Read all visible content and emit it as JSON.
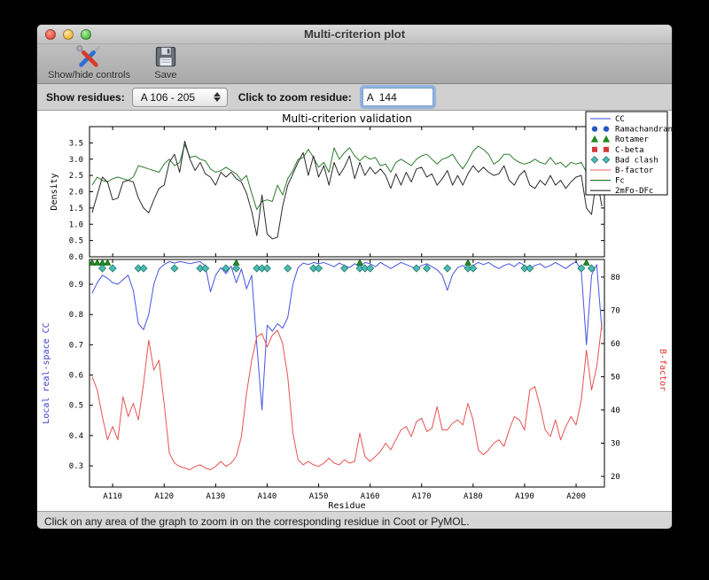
{
  "window": {
    "title": "Multi-criterion plot",
    "toolbar": {
      "show_hide_label": "Show/hide controls",
      "save_label": "Save"
    },
    "controls": {
      "show_residues_label": "Show residues:",
      "residue_range_value": "A 106 - 205",
      "zoom_residue_label": "Click to zoom residue:",
      "zoom_residue_value": "A  144"
    },
    "status_text": "Click on any area of the graph to zoom in on the corresponding residue in Coot or PyMOL."
  },
  "chart_data": {
    "type": "line",
    "title": "Multi-criterion validation",
    "xlabel": "Residue",
    "x_range": [
      105.5,
      205.5
    ],
    "residue_start": 106,
    "x_tick_labels": [
      "A110",
      "A120",
      "A130",
      "A140",
      "A150",
      "A160",
      "A170",
      "A180",
      "A190",
      "A200"
    ],
    "x_tick_residues": [
      110,
      120,
      130,
      140,
      150,
      160,
      170,
      180,
      190,
      200
    ],
    "legend": {
      "position": "upper right",
      "entries": [
        {
          "label": "CC",
          "type": "line",
          "color": "#5b6ee1"
        },
        {
          "label": "Ramachandran",
          "type": "circle",
          "color": "#2757c4"
        },
        {
          "label": "Rotamer",
          "type": "triangle",
          "color": "#1e8c1e"
        },
        {
          "label": "C-beta",
          "type": "square",
          "color": "#d33a3a"
        },
        {
          "label": "Bad clash",
          "type": "diamond",
          "color": "#4cbcb2"
        },
        {
          "label": "B-factor",
          "type": "line",
          "color": "#f08080"
        },
        {
          "label": "Fc",
          "type": "line",
          "color": "#2e7d2e"
        },
        {
          "label": "2mFo-DFc",
          "type": "line",
          "color": "#2b2b2b"
        }
      ]
    },
    "subplots": [
      {
        "name": "density",
        "ylabel": "Density",
        "ylabel_color": "#000000",
        "ylim": [
          0,
          4.0
        ],
        "yticks": [
          0.0,
          0.5,
          1.0,
          1.5,
          2.0,
          2.5,
          3.0,
          3.5
        ],
        "series": [
          {
            "name": "Fc",
            "color": "#2e7d2e",
            "values": [
              2.2,
              2.45,
              2.35,
              2.3,
              2.4,
              2.45,
              2.4,
              2.35,
              2.45,
              2.8,
              2.75,
              2.7,
              2.65,
              2.6,
              2.85,
              3.0,
              2.8,
              2.9,
              3.45,
              3.05,
              3.1,
              3.0,
              2.95,
              2.7,
              2.6,
              2.65,
              2.75,
              2.65,
              2.55,
              2.35,
              2.5,
              1.95,
              1.45,
              1.7,
              1.75,
              1.7,
              2.2,
              1.9,
              2.4,
              2.65,
              3.0,
              3.05,
              3.3,
              3.05,
              2.75,
              2.9,
              2.6,
              3.35,
              3.0,
              3.2,
              3.35,
              3.1,
              2.95,
              3.1,
              3.0,
              3.05,
              2.8,
              2.85,
              2.6,
              2.9,
              3.0,
              2.9,
              2.8,
              3.0,
              3.1,
              3.15,
              3.0,
              2.85,
              3.0,
              3.05,
              3.15,
              2.9,
              2.7,
              2.95,
              3.25,
              3.4,
              3.3,
              3.15,
              2.85,
              2.95,
              3.15,
              3.15,
              3.0,
              2.9,
              2.85,
              2.9,
              3.0,
              2.9,
              2.85,
              3.05,
              2.85,
              2.9,
              2.75,
              2.9,
              2.85,
              2.9,
              2.6,
              2.4,
              3.05,
              2.7
            ]
          },
          {
            "name": "2mFo-DFc",
            "color": "#2b2b2b",
            "values": [
              1.35,
              1.9,
              2.45,
              2.3,
              1.75,
              1.8,
              2.3,
              2.35,
              2.3,
              1.8,
              1.5,
              1.35,
              1.75,
              2.1,
              2.2,
              2.9,
              3.15,
              2.6,
              3.55,
              3.0,
              2.65,
              2.9,
              2.55,
              2.45,
              2.2,
              2.6,
              2.45,
              2.6,
              2.4,
              2.3,
              1.95,
              1.4,
              0.65,
              1.9,
              0.7,
              0.55,
              0.6,
              1.55,
              2.2,
              2.55,
              2.9,
              3.2,
              2.5,
              3.1,
              2.45,
              2.8,
              2.2,
              2.9,
              2.5,
              2.75,
              3.1,
              2.4,
              2.9,
              2.5,
              2.75,
              2.55,
              2.7,
              2.5,
              2.1,
              2.55,
              2.2,
              2.6,
              2.3,
              2.7,
              2.75,
              2.45,
              2.55,
              2.2,
              2.4,
              2.65,
              2.2,
              2.5,
              2.2,
              2.55,
              2.8,
              2.6,
              2.75,
              2.6,
              2.5,
              2.55,
              2.8,
              2.35,
              2.2,
              2.5,
              2.65,
              2.2,
              2.1,
              2.35,
              2.2,
              2.5,
              2.2,
              2.35,
              2.1,
              2.3,
              2.45,
              2.5,
              1.5,
              1.3,
              2.45,
              1.55
            ]
          }
        ]
      },
      {
        "name": "cc_bfactor",
        "ylabel_left": "Local real-space CC",
        "ylabel_left_color": "#3c3ccc",
        "ylim_left": [
          0.23,
          0.982
        ],
        "yticks_left": [
          0.3,
          0.4,
          0.5,
          0.6,
          0.7,
          0.8,
          0.9
        ],
        "ylabel_right": "B-factor",
        "ylabel_right_color": "#e03030",
        "ylim_right": [
          16.8,
          85.3
        ],
        "yticks_right": [
          20,
          30,
          40,
          50,
          60,
          70,
          80
        ],
        "series": [
          {
            "name": "CC",
            "axis": "left",
            "color": "#4653e3",
            "values": [
              0.87,
              0.905,
              0.93,
              0.92,
              0.905,
              0.9,
              0.915,
              0.93,
              0.88,
              0.77,
              0.75,
              0.8,
              0.9,
              0.95,
              0.965,
              0.975,
              0.97,
              0.975,
              0.972,
              0.968,
              0.972,
              0.975,
              0.96,
              0.875,
              0.93,
              0.955,
              0.935,
              0.96,
              0.905,
              0.95,
              0.885,
              0.93,
              0.7,
              0.485,
              0.765,
              0.745,
              0.77,
              0.755,
              0.79,
              0.9,
              0.955,
              0.97,
              0.965,
              0.972,
              0.968,
              0.972,
              0.965,
              0.958,
              0.97,
              0.962,
              0.955,
              0.968,
              0.958,
              0.972,
              0.968,
              0.958,
              0.972,
              0.962,
              0.952,
              0.962,
              0.972,
              0.965,
              0.958,
              0.952,
              0.962,
              0.968,
              0.958,
              0.948,
              0.93,
              0.88,
              0.932,
              0.955,
              0.962,
              0.948,
              0.962,
              0.972,
              0.965,
              0.972,
              0.96,
              0.952,
              0.962,
              0.968,
              0.958,
              0.972,
              0.962,
              0.952,
              0.962,
              0.968,
              0.955,
              0.962,
              0.972,
              0.962,
              0.952,
              0.965,
              0.975,
              0.945,
              0.7,
              0.93,
              0.965,
              0.75
            ]
          },
          {
            "name": "B-factor",
            "axis": "right",
            "color": "#e65252",
            "values": [
              50,
              46,
              38,
              31,
              35,
              31,
              44,
              38,
              42,
              37,
              48,
              61,
              52,
              55,
              42,
              27,
              24,
              23,
              22.5,
              22,
              23,
              23.5,
              22.5,
              22,
              23,
              24.5,
              23,
              24,
              26,
              32,
              45,
              55,
              62,
              63,
              59,
              62.5,
              64,
              60,
              50,
              33,
              25,
              23.5,
              24.5,
              23.5,
              23,
              24,
              25.5,
              24,
              23.5,
              25,
              24,
              24.5,
              33,
              26,
              24.5,
              26,
              27.5,
              30,
              28,
              31,
              34,
              35,
              32,
              36.5,
              37.5,
              33.5,
              34.5,
              41,
              34,
              34,
              36,
              37,
              35.5,
              42,
              37,
              28,
              26.5,
              28,
              30,
              31,
              29,
              34,
              38,
              37,
              34,
              46,
              47,
              41,
              34,
              32,
              37,
              31,
              35,
              38,
              35.5,
              43,
              58,
              46,
              53,
              66
            ]
          }
        ],
        "outlier_markers": {
          "rotamer": {
            "shape": "triangle",
            "color": "#1e8c1e",
            "edge": "#0e5c0e",
            "residues": [
              106,
              107,
              108,
              109,
              134,
              158,
              179,
              202
            ]
          },
          "bad_clash": {
            "shape": "diamond",
            "color": "#4cbcb2",
            "edge": "#23766e",
            "residues": [
              108,
              110,
              115,
              116,
              122,
              127,
              128,
              132,
              134,
              138,
              139,
              140,
              144,
              149,
              150,
              155,
              158,
              159,
              160,
              169,
              171,
              175,
              179,
              180,
              190,
              191,
              201,
              203
            ]
          }
        }
      }
    ]
  }
}
